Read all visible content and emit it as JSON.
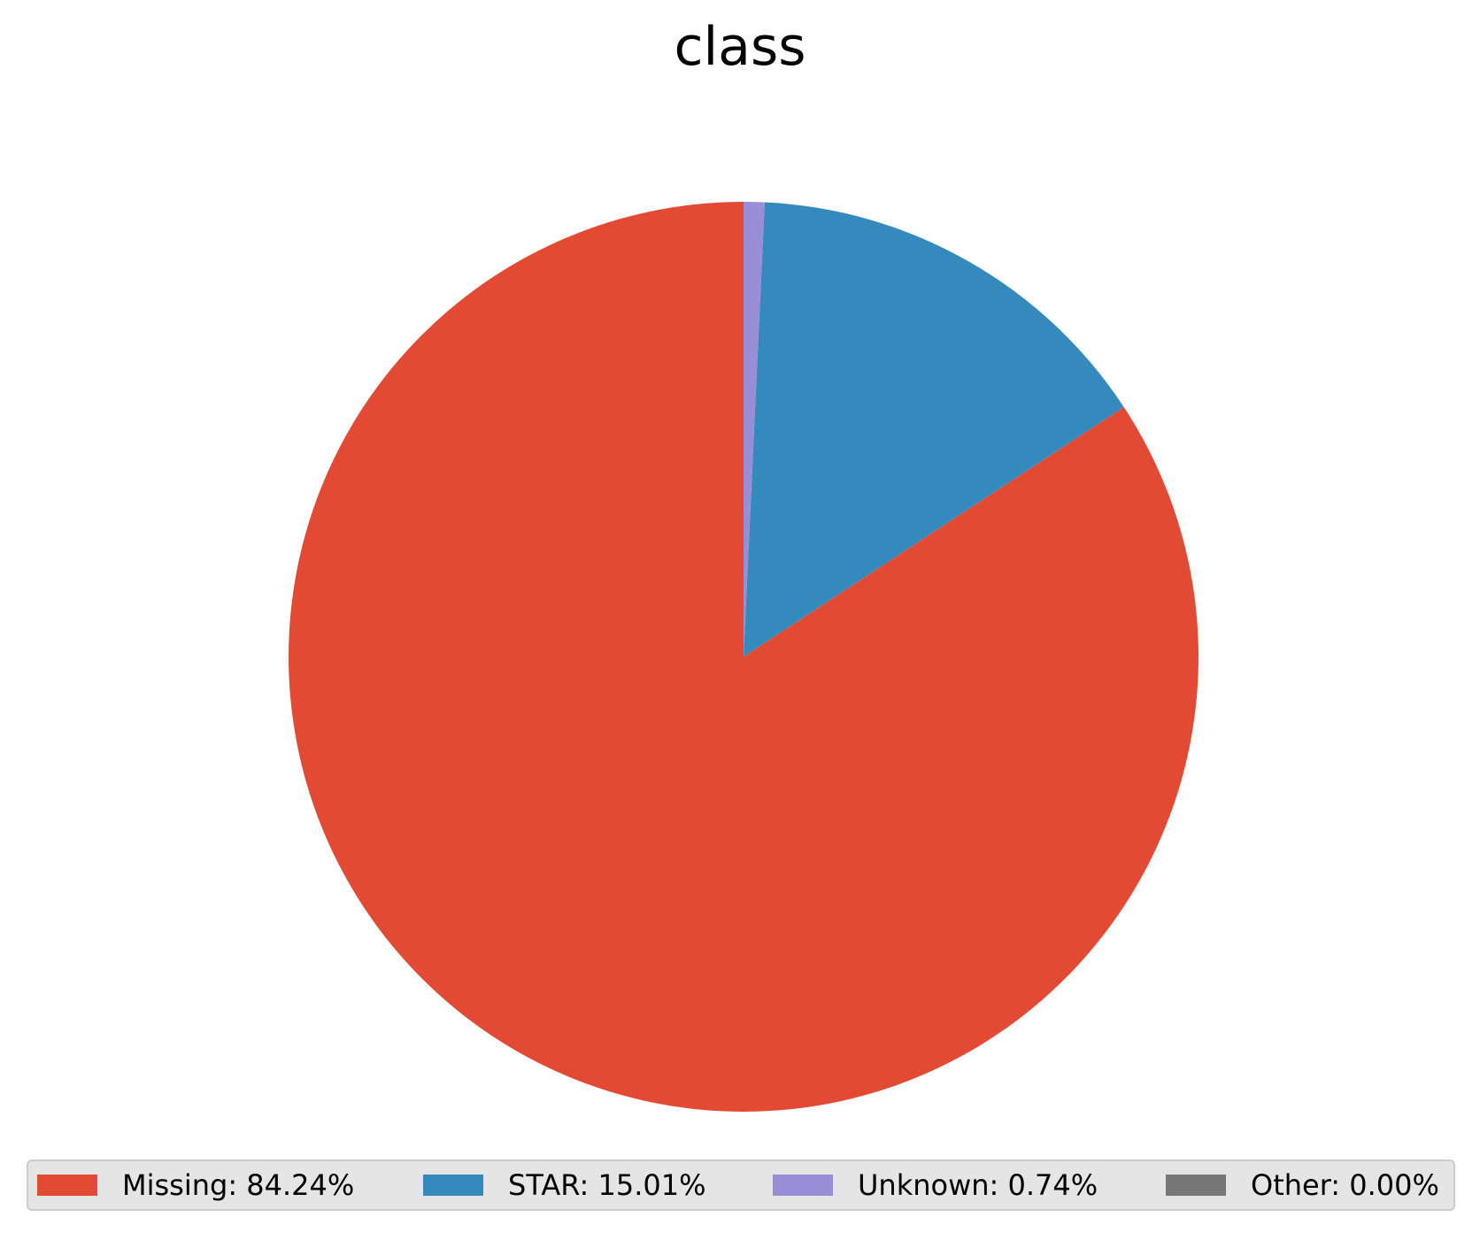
{
  "chart_data": {
    "type": "pie",
    "title": "class",
    "slices": [
      {
        "label": "Missing",
        "value": 84.24,
        "color": "#e24a33"
      },
      {
        "label": "STAR",
        "value": 15.01,
        "color": "#348abd"
      },
      {
        "label": "Unknown",
        "value": 0.74,
        "color": "#988ed5"
      },
      {
        "label": "Other",
        "value": 0.0,
        "color": "#777777"
      }
    ],
    "legend": {
      "placement": "bottom",
      "entries": [
        "Missing: 84.24%",
        "STAR: 15.01%",
        "Unknown: 0.74%",
        "Other: 0.00%"
      ]
    }
  }
}
